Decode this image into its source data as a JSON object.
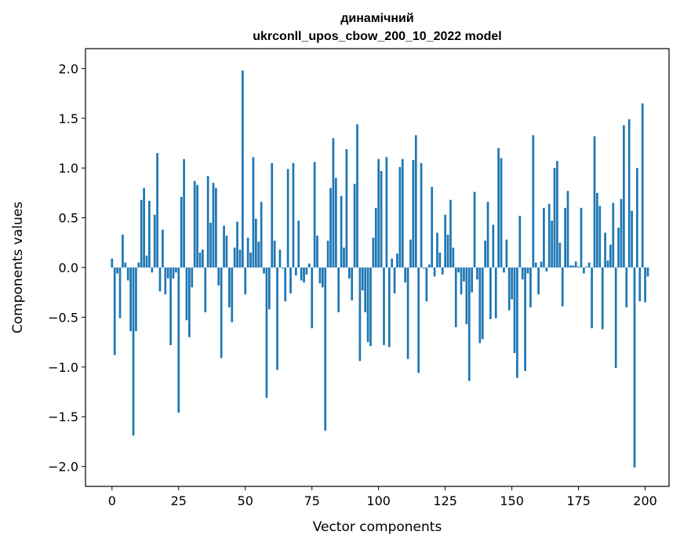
{
  "chart_data": {
    "type": "bar",
    "title_line1": "динамічний",
    "title_line2": "ukrconll_upos_cbow_200_10_2022 model",
    "xlabel": "Vector components",
    "ylabel": "Components values",
    "xlim": [
      -9.95,
      208.95
    ],
    "ylim": [
      -2.2,
      2.2
    ],
    "xticks": [
      0,
      25,
      50,
      75,
      100,
      125,
      150,
      175,
      200
    ],
    "yticks": [
      -2.0,
      -1.5,
      -1.0,
      -0.5,
      0.0,
      0.5,
      1.0,
      1.5,
      2.0
    ],
    "ytick_labels": [
      "−2.0",
      "−1.5",
      "−1.0",
      "−0.5",
      "0.0",
      "0.5",
      "1.0",
      "1.5",
      "2.0"
    ],
    "bar_color": "#1f77b4",
    "values": [
      0.09,
      -0.88,
      -0.06,
      -0.51,
      0.33,
      0.05,
      -0.13,
      -0.64,
      -1.69,
      -0.64,
      0.05,
      0.68,
      0.8,
      0.12,
      0.67,
      -0.05,
      0.53,
      1.15,
      -0.24,
      0.38,
      -0.27,
      -0.11,
      -0.78,
      -0.11,
      -0.05,
      -1.46,
      0.71,
      1.09,
      -0.53,
      -0.7,
      -0.2,
      0.87,
      0.83,
      0.15,
      0.18,
      -0.45,
      0.92,
      0.45,
      0.85,
      0.8,
      -0.18,
      -0.91,
      0.42,
      0.32,
      -0.4,
      -0.55,
      0.2,
      0.46,
      0.18,
      1.98,
      -0.27,
      0.3,
      0.15,
      1.11,
      0.49,
      0.26,
      0.66,
      -0.06,
      -1.31,
      -0.42,
      1.05,
      0.27,
      -1.03,
      0.18,
      -0.01,
      -0.34,
      0.99,
      -0.26,
      1.05,
      -0.08,
      0.47,
      -0.13,
      -0.15,
      -0.07,
      0.04,
      -0.61,
      1.06,
      0.32,
      -0.16,
      -0.2,
      -1.64,
      0.27,
      0.8,
      1.3,
      0.9,
      -0.45,
      0.72,
      0.2,
      1.19,
      -0.11,
      -0.33,
      0.84,
      1.44,
      -0.94,
      -0.23,
      -0.45,
      -0.75,
      -0.79,
      0.3,
      0.6,
      1.09,
      0.97,
      -0.78,
      1.11,
      -0.8,
      0.09,
      -0.26,
      0.14,
      1.01,
      1.09,
      -0.15,
      -0.92,
      0.28,
      1.08,
      1.33,
      -1.06,
      1.05,
      -0.01,
      -0.34,
      0.03,
      0.81,
      -0.09,
      0.35,
      0.15,
      -0.07,
      0.53,
      0.33,
      0.68,
      0.2,
      -0.6,
      -0.05,
      -0.27,
      -0.14,
      -0.57,
      -1.14,
      -0.25,
      0.76,
      -0.12,
      -0.76,
      -0.72,
      0.27,
      0.66,
      -0.52,
      0.43,
      -0.51,
      1.2,
      1.1,
      -0.05,
      0.28,
      -0.43,
      -0.32,
      -0.86,
      -1.11,
      0.52,
      -0.12,
      -1.04,
      -0.06,
      -0.4,
      1.33,
      0.05,
      -0.27,
      0.06,
      0.6,
      -0.04,
      0.64,
      0.47,
      1.0,
      1.07,
      0.25,
      -0.39,
      0.6,
      0.77,
      0.02,
      0.02,
      0.06,
      0.01,
      0.6,
      -0.06,
      0.01,
      0.05,
      -0.61,
      1.32,
      0.75,
      0.62,
      -0.62,
      0.35,
      0.07,
      0.23,
      0.65,
      -1.01,
      0.4,
      0.69,
      1.43,
      -0.4,
      1.49,
      0.57,
      -2.01,
      1.0,
      -0.34,
      1.65,
      -0.35,
      -0.09
    ]
  }
}
